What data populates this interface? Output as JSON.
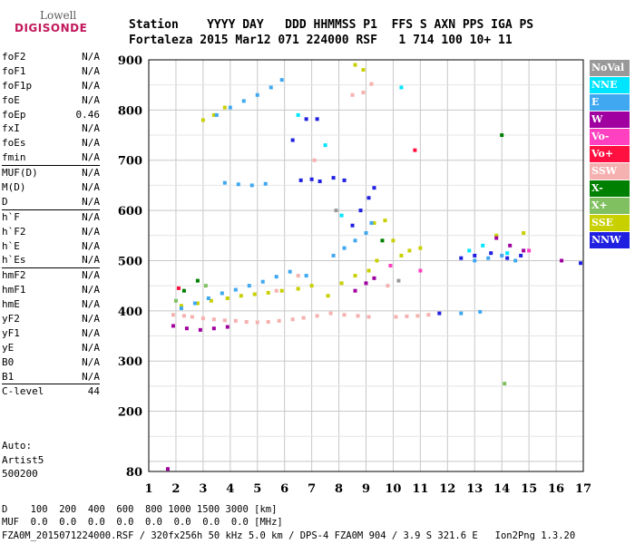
{
  "logo": {
    "top": "Lowell",
    "bottom": "DIGISONDE"
  },
  "header": {
    "line1": "Station    YYYY DAY   DDD HHMMSS P1  FFS S AXN PPS IGA PS",
    "line2": "Fortaleza 2015 Mar12 071 224000 RSF   1 714 100 10+ 11"
  },
  "params": {
    "group1": [
      {
        "name": "foF2",
        "value": "N/A"
      },
      {
        "name": "foF1",
        "value": "N/A"
      },
      {
        "name": "foF1p",
        "value": "N/A"
      },
      {
        "name": "foE",
        "value": "N/A"
      },
      {
        "name": "foEp",
        "value": "0.46"
      },
      {
        "name": "fxI",
        "value": "N/A"
      },
      {
        "name": "foEs",
        "value": "N/A"
      },
      {
        "name": "fmin",
        "value": "N/A"
      }
    ],
    "group2": [
      {
        "name": "MUF(D)",
        "value": "N/A"
      },
      {
        "name": "M(D)",
        "value": "N/A"
      },
      {
        "name": "D",
        "value": "N/A"
      }
    ],
    "group3": [
      {
        "name": "h`F",
        "value": "N/A"
      },
      {
        "name": "h`F2",
        "value": "N/A"
      },
      {
        "name": "h`E",
        "value": "N/A"
      },
      {
        "name": "h`Es",
        "value": "N/A"
      }
    ],
    "group4": [
      {
        "name": "hmF2",
        "value": "N/A"
      },
      {
        "name": "hmF1",
        "value": "N/A"
      },
      {
        "name": "hmE",
        "value": "N/A"
      },
      {
        "name": "yF2",
        "value": "N/A"
      },
      {
        "name": "yF1",
        "value": "N/A"
      },
      {
        "name": "yE",
        "value": "N/A"
      },
      {
        "name": "B0",
        "value": "N/A"
      },
      {
        "name": "B1",
        "value": "N/A"
      }
    ],
    "group5": [
      {
        "name": "C-level",
        "value": "44"
      }
    ]
  },
  "auto": {
    "label": "Auto:",
    "name": "Artist5",
    "version": "500200"
  },
  "legend": [
    {
      "label": "NoVal",
      "color": "#999999"
    },
    {
      "label": "NNE",
      "color": "#00e5ff"
    },
    {
      "label": "E",
      "color": "#40a8f0"
    },
    {
      "label": "W",
      "color": "#a000a0"
    },
    {
      "label": "Vo-",
      "color": "#ff40c0"
    },
    {
      "label": "Vo+",
      "color": "#ff1040"
    },
    {
      "label": "SSW",
      "color": "#f5b0b0"
    },
    {
      "label": "X-",
      "color": "#008000"
    },
    {
      "label": "X+",
      "color": "#80c060"
    },
    {
      "label": "SSE",
      "color": "#c8d000"
    },
    {
      "label": "NNW",
      "color": "#2020e0"
    }
  ],
  "footer": {
    "d_line": "D    100  200  400  600  800 1000 1500 3000 [km]",
    "muf_line": "MUF  0.0  0.0  0.0  0.0  0.0  0.0  0.0  0.0 [MHz]",
    "file_line": "FZA0M_2015071224000.RSF / 320fx256h 50 kHz 5.0 km / DPS-4 FZA0M 904 / 3.9 S 321.6 E   Ion2Png 1.3.20"
  },
  "chart_data": {
    "type": "scatter",
    "xlim": [
      1,
      17
    ],
    "ylim": [
      80,
      900
    ],
    "x_ticks": [
      1,
      2,
      3,
      4,
      5,
      6,
      7,
      8,
      9,
      10,
      11,
      12,
      13,
      14,
      15,
      16,
      17
    ],
    "y_ticks": [
      80,
      200,
      300,
      400,
      500,
      600,
      700,
      800,
      900
    ],
    "grid": true,
    "series": [
      {
        "name": "SSW",
        "color": "#f5b0b0",
        "points": [
          [
            1.9,
            392
          ],
          [
            2.3,
            390
          ],
          [
            2.6,
            388
          ],
          [
            3.0,
            385
          ],
          [
            3.4,
            383
          ],
          [
            3.8,
            381
          ],
          [
            4.2,
            380
          ],
          [
            4.6,
            378
          ],
          [
            5.0,
            377
          ],
          [
            5.4,
            378
          ],
          [
            5.8,
            380
          ],
          [
            6.3,
            383
          ],
          [
            6.7,
            386
          ],
          [
            7.2,
            390
          ],
          [
            7.7,
            395
          ],
          [
            8.2,
            392
          ],
          [
            8.7,
            390
          ],
          [
            9.1,
            388
          ],
          [
            10.1,
            388
          ],
          [
            10.5,
            389
          ],
          [
            10.9,
            390
          ],
          [
            11.3,
            392
          ],
          [
            8.9,
            835
          ],
          [
            9.2,
            852
          ],
          [
            8.5,
            830
          ],
          [
            5.7,
            440
          ],
          [
            6.5,
            470
          ],
          [
            7.1,
            700
          ],
          [
            9.8,
            450
          ]
        ]
      },
      {
        "name": "SSE",
        "color": "#c8d000",
        "points": [
          [
            2.2,
            410
          ],
          [
            2.8,
            415
          ],
          [
            3.3,
            420
          ],
          [
            3.9,
            425
          ],
          [
            4.4,
            430
          ],
          [
            4.9,
            433
          ],
          [
            5.4,
            436
          ],
          [
            5.9,
            440
          ],
          [
            6.5,
            444
          ],
          [
            7.0,
            450
          ],
          [
            7.6,
            430
          ],
          [
            8.1,
            455
          ],
          [
            8.6,
            470
          ],
          [
            9.1,
            480
          ],
          [
            9.4,
            500
          ],
          [
            10.0,
            540
          ],
          [
            10.3,
            510
          ],
          [
            10.6,
            520
          ],
          [
            11.0,
            525
          ],
          [
            13.8,
            550
          ],
          [
            14.8,
            555
          ],
          [
            3.0,
            780
          ],
          [
            3.4,
            790
          ],
          [
            3.8,
            805
          ],
          [
            8.6,
            890
          ],
          [
            8.9,
            880
          ],
          [
            9.3,
            575
          ],
          [
            9.7,
            580
          ]
        ]
      },
      {
        "name": "E",
        "color": "#40a8f0",
        "points": [
          [
            2.2,
            405
          ],
          [
            2.7,
            415
          ],
          [
            3.2,
            425
          ],
          [
            3.7,
            435
          ],
          [
            4.2,
            442
          ],
          [
            4.7,
            450
          ],
          [
            5.2,
            458
          ],
          [
            5.7,
            468
          ],
          [
            6.2,
            478
          ],
          [
            6.8,
            470
          ],
          [
            7.8,
            510
          ],
          [
            8.2,
            525
          ],
          [
            8.6,
            540
          ],
          [
            9.0,
            555
          ],
          [
            9.2,
            575
          ],
          [
            3.5,
            790
          ],
          [
            4.0,
            805
          ],
          [
            4.5,
            818
          ],
          [
            5.0,
            830
          ],
          [
            5.5,
            845
          ],
          [
            5.9,
            860
          ],
          [
            3.8,
            655
          ],
          [
            4.3,
            652
          ],
          [
            4.8,
            650
          ],
          [
            5.3,
            653
          ],
          [
            13.0,
            500
          ],
          [
            13.5,
            505
          ],
          [
            14.0,
            510
          ],
          [
            14.5,
            500
          ],
          [
            12.5,
            395
          ],
          [
            13.2,
            398
          ]
        ]
      },
      {
        "name": "NNW",
        "color": "#2020e0",
        "points": [
          [
            6.6,
            660
          ],
          [
            7.0,
            662
          ],
          [
            7.3,
            658
          ],
          [
            7.8,
            665
          ],
          [
            8.2,
            660
          ],
          [
            8.5,
            570
          ],
          [
            8.8,
            600
          ],
          [
            9.1,
            625
          ],
          [
            9.3,
            645
          ],
          [
            6.8,
            782
          ],
          [
            7.2,
            782
          ],
          [
            6.3,
            740
          ],
          [
            12.5,
            505
          ],
          [
            13.0,
            510
          ],
          [
            13.6,
            515
          ],
          [
            14.2,
            505
          ],
          [
            14.7,
            510
          ],
          [
            16.9,
            495
          ],
          [
            11.7,
            395
          ]
        ]
      },
      {
        "name": "W",
        "color": "#a000a0",
        "points": [
          [
            1.9,
            370
          ],
          [
            2.4,
            365
          ],
          [
            2.9,
            362
          ],
          [
            3.4,
            365
          ],
          [
            3.9,
            368
          ],
          [
            8.6,
            440
          ],
          [
            9.0,
            455
          ],
          [
            9.3,
            465
          ],
          [
            13.8,
            545
          ],
          [
            14.3,
            530
          ],
          [
            14.8,
            520
          ],
          [
            16.2,
            500
          ],
          [
            1.7,
            85
          ]
        ]
      },
      {
        "name": "NNE",
        "color": "#00e5ff",
        "points": [
          [
            10.3,
            845
          ],
          [
            7.5,
            730
          ],
          [
            12.8,
            520
          ],
          [
            13.3,
            530
          ],
          [
            14.2,
            515
          ],
          [
            6.5,
            790
          ],
          [
            8.1,
            590
          ]
        ]
      },
      {
        "name": "X-",
        "color": "#008000",
        "points": [
          [
            14.0,
            750
          ],
          [
            2.3,
            440
          ],
          [
            2.8,
            460
          ],
          [
            9.6,
            540
          ]
        ]
      },
      {
        "name": "X+",
        "color": "#80c060",
        "points": [
          [
            14.1,
            255
          ],
          [
            2.0,
            420
          ],
          [
            3.1,
            450
          ]
        ]
      },
      {
        "name": "Vo-",
        "color": "#ff40c0",
        "points": [
          [
            11.0,
            480
          ],
          [
            15.0,
            520
          ],
          [
            9.9,
            490
          ]
        ]
      },
      {
        "name": "Vo+",
        "color": "#ff1040",
        "points": [
          [
            2.1,
            445
          ],
          [
            10.8,
            720
          ]
        ]
      },
      {
        "name": "NoVal",
        "color": "#999999",
        "points": [
          [
            7.9,
            600
          ],
          [
            10.2,
            460
          ]
        ]
      }
    ]
  }
}
